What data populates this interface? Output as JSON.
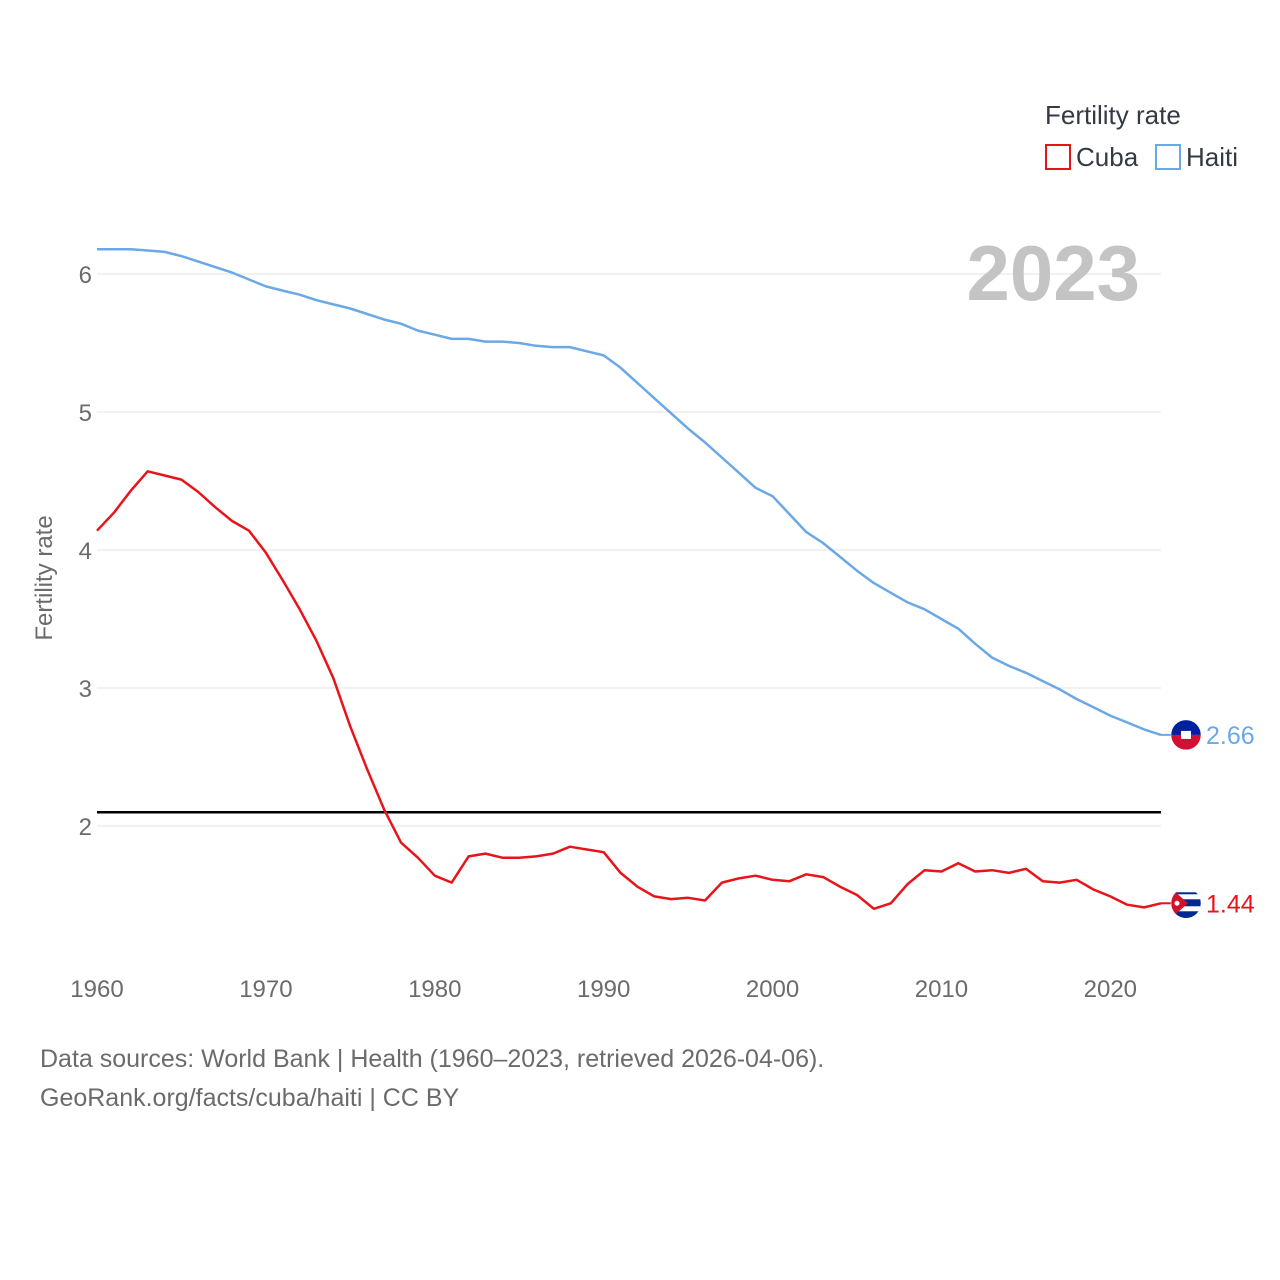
{
  "chart_data": {
    "type": "line",
    "year_label": "2023",
    "ylabel": "Fertility rate",
    "ylim": [
      1.0,
      6.3
    ],
    "xlim": [
      1960,
      2023
    ],
    "yticks": [
      2,
      3,
      4,
      5,
      6
    ],
    "xticks": [
      1960,
      1970,
      1980,
      1990,
      2000,
      2010,
      2020
    ],
    "reference_line": 2.1,
    "legend": {
      "title": "Fertility rate",
      "position": "top-right"
    },
    "colors": {
      "Cuba": "#e8141b",
      "Haiti": "#6aa9e6",
      "reference": "#000000"
    },
    "x": [
      1960,
      1961,
      1962,
      1963,
      1964,
      1965,
      1966,
      1967,
      1968,
      1969,
      1970,
      1971,
      1972,
      1973,
      1974,
      1975,
      1976,
      1977,
      1978,
      1979,
      1980,
      1981,
      1982,
      1983,
      1984,
      1985,
      1986,
      1987,
      1988,
      1989,
      1990,
      1991,
      1992,
      1993,
      1994,
      1995,
      1996,
      1997,
      1998,
      1999,
      2000,
      2001,
      2002,
      2003,
      2004,
      2005,
      2006,
      2007,
      2008,
      2009,
      2010,
      2011,
      2012,
      2013,
      2014,
      2015,
      2016,
      2017,
      2018,
      2019,
      2020,
      2021,
      2022,
      2023
    ],
    "series": [
      {
        "name": "Cuba",
        "end_label": "1.44",
        "values": [
          4.14,
          4.27,
          4.43,
          4.57,
          4.54,
          4.51,
          4.42,
          4.31,
          4.21,
          4.14,
          3.98,
          3.78,
          3.57,
          3.34,
          3.07,
          2.72,
          2.41,
          2.12,
          1.88,
          1.77,
          1.64,
          1.59,
          1.78,
          1.8,
          1.77,
          1.77,
          1.78,
          1.8,
          1.85,
          1.83,
          1.81,
          1.66,
          1.56,
          1.49,
          1.47,
          1.48,
          1.46,
          1.59,
          1.62,
          1.64,
          1.61,
          1.6,
          1.65,
          1.63,
          1.56,
          1.5,
          1.4,
          1.44,
          1.58,
          1.68,
          1.67,
          1.73,
          1.67,
          1.68,
          1.66,
          1.69,
          1.6,
          1.59,
          1.61,
          1.54,
          1.49,
          1.43,
          1.41,
          1.44
        ]
      },
      {
        "name": "Haiti",
        "end_label": "2.66",
        "values": [
          6.18,
          6.18,
          6.18,
          6.17,
          6.16,
          6.13,
          6.09,
          6.05,
          6.01,
          5.96,
          5.91,
          5.88,
          5.85,
          5.81,
          5.78,
          5.75,
          5.71,
          5.67,
          5.64,
          5.59,
          5.56,
          5.53,
          5.53,
          5.51,
          5.51,
          5.5,
          5.48,
          5.47,
          5.47,
          5.44,
          5.41,
          5.32,
          5.21,
          5.1,
          4.99,
          4.88,
          4.78,
          4.67,
          4.56,
          4.45,
          4.39,
          4.26,
          4.13,
          4.05,
          3.95,
          3.85,
          3.76,
          3.69,
          3.62,
          3.57,
          3.5,
          3.43,
          3.32,
          3.22,
          3.16,
          3.11,
          3.05,
          2.99,
          2.92,
          2.86,
          2.8,
          2.75,
          2.7,
          2.66
        ]
      }
    ]
  },
  "source": {
    "line1": "Data sources: World Bank | Health (1960–2023, retrieved 2026-04-06).",
    "line2": "GeoRank.org/facts/cuba/haiti | CC BY"
  },
  "flags": {
    "Cuba": "cuba-flag-icon",
    "Haiti": "haiti-flag-icon"
  }
}
